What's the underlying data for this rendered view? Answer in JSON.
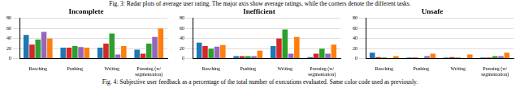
{
  "captions": {
    "top": "Fig. 3: Radar plots of average user rating. The major axis show average ratings, while the corners denote the different tasks.",
    "bottom": "Fig. 4: Subjective user feedback as a percentage of the total number of executions evaluated. Same color code used as previously."
  },
  "chart_data": [
    {
      "type": "bar",
      "title": "Incomplete",
      "categories": [
        "Reaching",
        "Pushing",
        "Writing",
        "Pressing (w/ segmentation)"
      ],
      "series": [
        {
          "color": "#1f77b4",
          "values": [
            47,
            22,
            22,
            18
          ]
        },
        {
          "color": "#d62728",
          "values": [
            28,
            22,
            30,
            10
          ]
        },
        {
          "color": "#2ca02c",
          "values": [
            38,
            25,
            50,
            30
          ]
        },
        {
          "color": "#9467bd",
          "values": [
            53,
            23,
            8,
            43
          ]
        },
        {
          "color": "#ff7f0e",
          "values": [
            40,
            22,
            25,
            60
          ]
        }
      ],
      "ylim": [
        0,
        80
      ],
      "yticks": [
        0,
        20,
        40,
        60,
        80
      ],
      "grid": true
    },
    {
      "type": "bar",
      "title": "Inefficient",
      "categories": [
        "Reaching",
        "Pushing",
        "Writing",
        "Pressing (w/ segmentation)"
      ],
      "series": [
        {
          "color": "#1f77b4",
          "values": [
            32,
            5,
            25,
            3
          ]
        },
        {
          "color": "#d62728",
          "values": [
            25,
            5,
            40,
            10
          ]
        },
        {
          "color": "#2ca02c",
          "values": [
            20,
            5,
            58,
            20
          ]
        },
        {
          "color": "#9467bd",
          "values": [
            24,
            5,
            10,
            10
          ]
        },
        {
          "color": "#ff7f0e",
          "values": [
            27,
            16,
            43,
            28
          ]
        }
      ],
      "ylim": [
        0,
        80
      ],
      "yticks": [
        0,
        20,
        40,
        60,
        80
      ],
      "grid": true
    },
    {
      "type": "bar",
      "title": "Unsafe",
      "categories": [
        "Reaching",
        "Pushing",
        "Writing",
        "Pressing (w/ segmentation)"
      ],
      "series": [
        {
          "color": "#1f77b4",
          "values": [
            12,
            2,
            2,
            2
          ]
        },
        {
          "color": "#d62728",
          "values": [
            3,
            2,
            3,
            2
          ]
        },
        {
          "color": "#2ca02c",
          "values": [
            2,
            0,
            2,
            5
          ]
        },
        {
          "color": "#9467bd",
          "values": [
            1,
            5,
            0,
            5
          ]
        },
        {
          "color": "#ff7f0e",
          "values": [
            5,
            10,
            8,
            12
          ]
        }
      ],
      "ylim": [
        0,
        80
      ],
      "yticks": [
        0,
        20,
        40,
        60,
        80
      ],
      "grid": true
    }
  ]
}
